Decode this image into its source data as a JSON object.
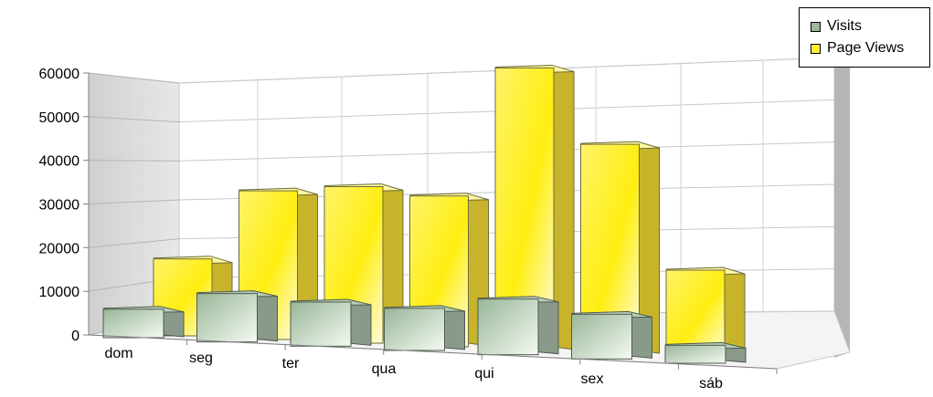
{
  "chart_data": {
    "type": "bar",
    "categories": [
      "dom",
      "seg",
      "ter",
      "qua",
      "qui",
      "sex",
      "sáb"
    ],
    "series": [
      {
        "name": "Visits",
        "values": [
          6500,
          11000,
          10000,
          9500,
          12500,
          10000,
          4000
        ]
      },
      {
        "name": "Page Views",
        "values": [
          18000,
          34000,
          35000,
          33000,
          60500,
          44000,
          18000
        ]
      }
    ],
    "y_ticks": [
      "0",
      "10000",
      "20000",
      "30000",
      "40000",
      "50000",
      "60000"
    ],
    "ylim": [
      0,
      60000
    ],
    "grid": true,
    "legend": "top-right",
    "colors": {
      "Visits": "#9cb89c",
      "Page Views": "#ffee33"
    }
  }
}
